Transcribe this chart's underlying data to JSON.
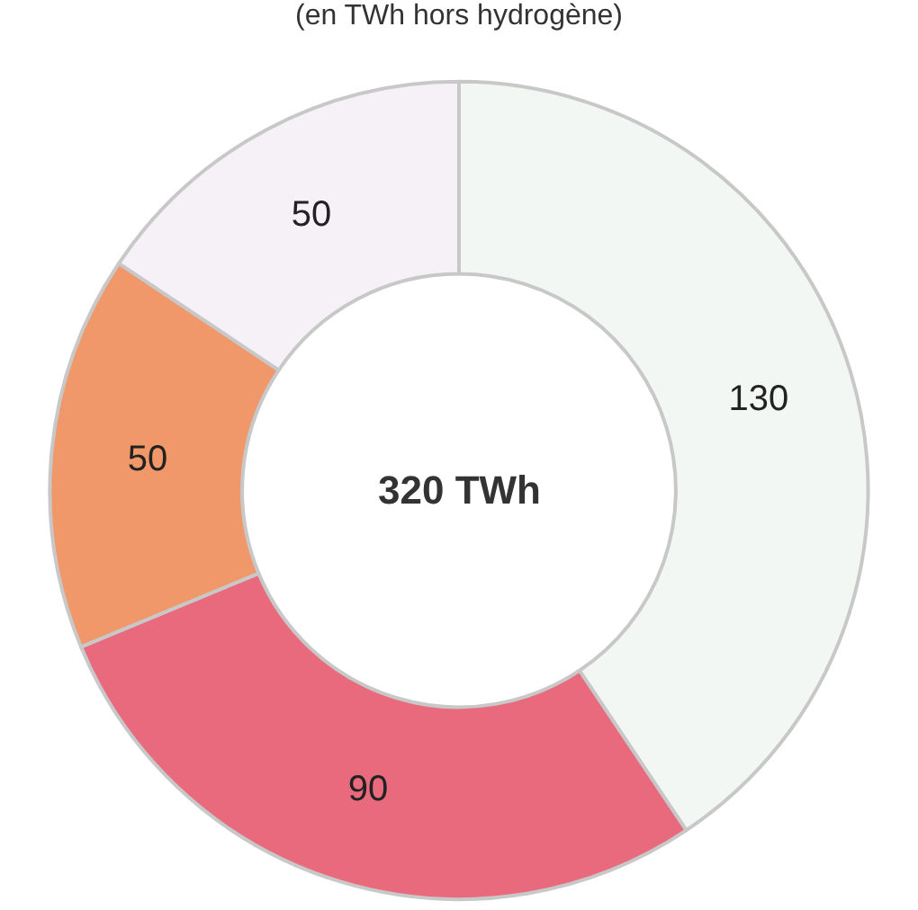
{
  "chart_data": {
    "type": "donut",
    "title": "(en TWh hors hydrogène)",
    "categories": [
      null,
      null,
      null,
      null
    ],
    "values": [
      130,
      90,
      50,
      50
    ],
    "colors": [
      "#f3f7f4",
      "#e96a7d",
      "#f0986a",
      "#f6f1f7"
    ],
    "data_labels": true,
    "annotations": [
      "320 TWh"
    ],
    "legend": false
  }
}
